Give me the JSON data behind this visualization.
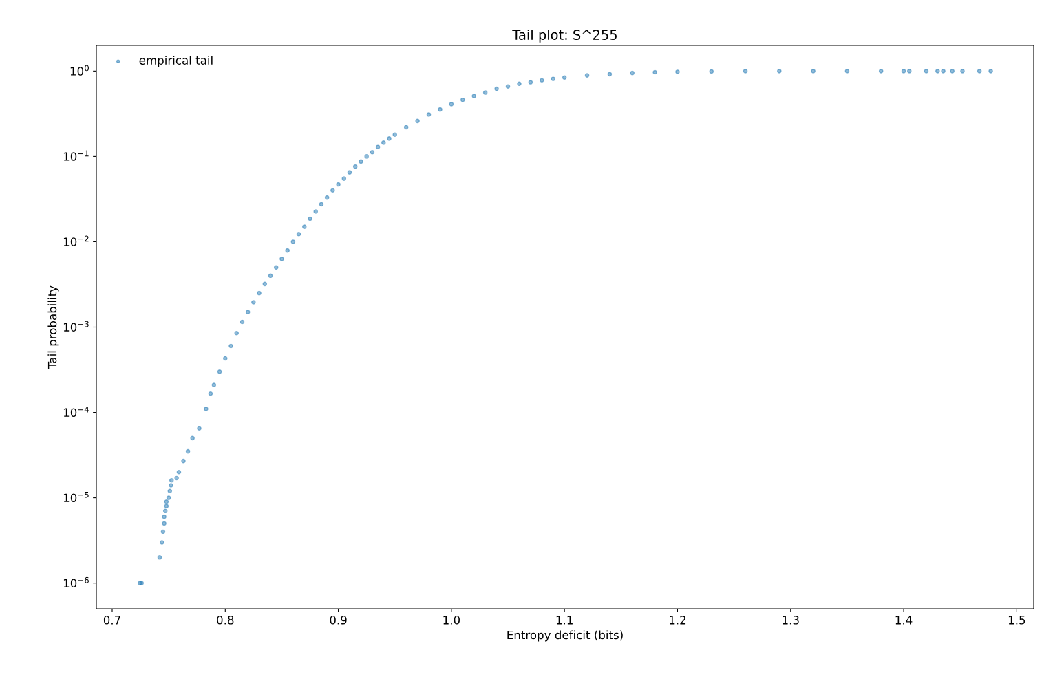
{
  "chart_data": {
    "type": "scatter",
    "title": "Tail plot: S^255",
    "xlabel": "Entropy deficit (bits)",
    "ylabel": "Tail probability",
    "log": "y",
    "grid": false,
    "legend": "top left",
    "marker": "circle",
    "xlim": [
      0.686,
      1.515
    ],
    "xticks": [
      0.7,
      0.8,
      0.9,
      {
        "value": 1,
        "label": "1.0"
      },
      1.1,
      1.2,
      1.3,
      1.4,
      1.5
    ],
    "ylim": [
      5e-07,
      2
    ],
    "yticks": [
      {
        "value": 1e-06,
        "label": "10$^{−6}$"
      },
      {
        "value": 1e-05,
        "label": "10$^{−5}$"
      },
      {
        "value": 0.0001,
        "label": "10$^{−4}$"
      },
      {
        "value": 0.001,
        "label": "10$^{−3}$"
      },
      {
        "value": 0.01,
        "label": "10$^{−2}$"
      },
      {
        "value": 0.1,
        "label": "10$^{−1}$"
      },
      {
        "value": 1,
        "label": "10$^{0}$"
      }
    ],
    "series": [
      {
        "name": "empirical tail",
        "color": "#1f77b4",
        "x": [
          0.7245,
          0.726,
          0.742,
          0.744,
          0.745,
          0.746,
          0.746,
          0.747,
          0.748,
          0.748,
          0.75,
          0.751,
          0.752,
          0.7525,
          0.757,
          0.759,
          0.763,
          0.767,
          0.771,
          0.777,
          0.783,
          0.787,
          0.79,
          0.795,
          0.8,
          0.805,
          0.81,
          0.815,
          0.82,
          0.825,
          0.83,
          0.835,
          0.84,
          0.845,
          0.85,
          0.855,
          0.86,
          0.865,
          0.87,
          0.875,
          0.88,
          0.885,
          0.89,
          0.895,
          0.9,
          0.905,
          0.91,
          0.915,
          0.92,
          0.925,
          0.93,
          0.935,
          0.94,
          0.945,
          0.95,
          0.96,
          0.97,
          0.98,
          0.99,
          1.0,
          1.01,
          1.02,
          1.03,
          1.04,
          1.05,
          1.06,
          1.07,
          1.08,
          1.09,
          1.1,
          1.12,
          1.14,
          1.16,
          1.18,
          1.2,
          1.23,
          1.26,
          1.29,
          1.32,
          1.35,
          1.38,
          1.4,
          1.405,
          1.42,
          1.43,
          1.435,
          1.443,
          1.452,
          1.467,
          1.477
        ],
        "values": [
          1e-06,
          1e-06,
          2e-06,
          3e-06,
          4e-06,
          5e-06,
          6e-06,
          7e-06,
          8e-06,
          9e-06,
          1e-05,
          1.2e-05,
          1.4e-05,
          1.6e-05,
          1.7e-05,
          2e-05,
          2.7e-05,
          3.5e-05,
          5e-05,
          6.5e-05,
          0.00011,
          0.000166,
          0.00021,
          0.0003,
          0.00043,
          0.0006,
          0.00085,
          0.00115,
          0.0015,
          0.00195,
          0.0025,
          0.0032,
          0.004,
          0.005,
          0.0063,
          0.0079,
          0.01,
          0.0123,
          0.015,
          0.0186,
          0.0226,
          0.0275,
          0.033,
          0.04,
          0.047,
          0.055,
          0.065,
          0.076,
          0.087,
          0.1,
          0.112,
          0.129,
          0.145,
          0.162,
          0.18,
          0.22,
          0.26,
          0.31,
          0.355,
          0.41,
          0.46,
          0.51,
          0.56,
          0.62,
          0.66,
          0.71,
          0.74,
          0.78,
          0.81,
          0.84,
          0.89,
          0.92,
          0.95,
          0.97,
          0.98,
          0.99,
          1,
          1,
          1,
          1,
          1,
          1,
          1,
          1,
          1,
          1,
          1,
          1,
          1,
          1
        ]
      }
    ]
  }
}
